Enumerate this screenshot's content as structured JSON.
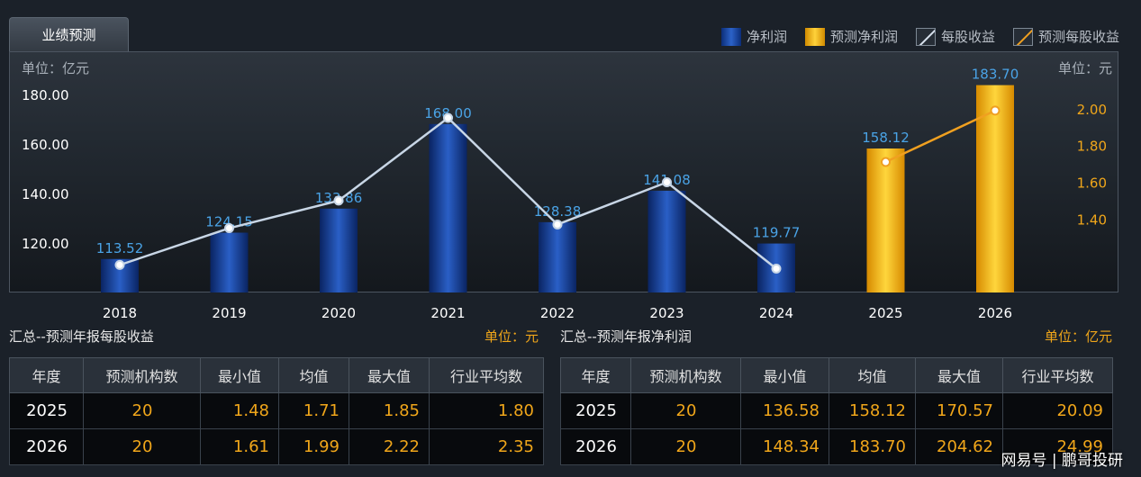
{
  "tab": {
    "label": "业绩预测"
  },
  "legend": [
    {
      "label": "净利润",
      "swatch": "blue"
    },
    {
      "label": "预测净利润",
      "swatch": "gold"
    },
    {
      "label": "每股收益",
      "swatch": "line white"
    },
    {
      "label": "预测每股收益",
      "swatch": "line orange"
    }
  ],
  "units": {
    "left": "单位：亿元",
    "right": "单位：元"
  },
  "chart_data": {
    "type": "bar",
    "categories": [
      "2018",
      "2019",
      "2020",
      "2021",
      "2022",
      "2023",
      "2024",
      "2025",
      "2026"
    ],
    "series": [
      {
        "name": "净利润",
        "values": [
          113.52,
          124.15,
          133.86,
          168.0,
          128.38,
          141.08,
          119.77,
          null,
          null
        ],
        "color": "#1f4fb0",
        "axis": "left"
      },
      {
        "name": "预测净利润",
        "values": [
          null,
          null,
          null,
          null,
          null,
          null,
          null,
          158.12,
          183.7
        ],
        "color": "#f5b400",
        "axis": "left"
      },
      {
        "name": "每股收益",
        "values": [
          1.15,
          1.35,
          1.5,
          1.95,
          1.37,
          1.6,
          1.13,
          null,
          null
        ],
        "color": "#c8d6e6",
        "axis": "right"
      },
      {
        "name": "预测每股收益",
        "values": [
          null,
          null,
          null,
          null,
          null,
          null,
          null,
          1.71,
          1.99
        ],
        "color": "#f0a020",
        "axis": "right"
      }
    ],
    "bar_labels": [
      "113.52",
      "124.15",
      "133.86",
      "168.00",
      "128.38",
      "141.08",
      "119.77",
      "158.12",
      "183.70"
    ],
    "y_left": {
      "ticks": [
        "120.00",
        "140.00",
        "160.00",
        "180.00"
      ],
      "range": [
        100,
        189
      ]
    },
    "y_right": {
      "ticks": [
        "1.40",
        "1.60",
        "1.80",
        "2.00"
      ],
      "range": [
        1.0,
        2.2
      ]
    },
    "grid": false
  },
  "eps_table": {
    "title": "汇总--预测年报每股收益",
    "unit": "单位：元",
    "headers": [
      "年度",
      "预测机构数",
      "最小值",
      "均值",
      "最大值",
      "行业平均数"
    ],
    "rows": [
      [
        "2025",
        "20",
        "1.48",
        "1.71",
        "1.85",
        "1.80"
      ],
      [
        "2026",
        "20",
        "1.61",
        "1.99",
        "2.22",
        "2.35"
      ]
    ]
  },
  "profit_table": {
    "title": "汇总--预测年报净利润",
    "unit": "单位：亿元",
    "headers": [
      "年度",
      "预测机构数",
      "最小值",
      "均值",
      "最大值",
      "行业平均数"
    ],
    "rows": [
      [
        "2025",
        "20",
        "136.58",
        "158.12",
        "170.57",
        "20.09"
      ],
      [
        "2026",
        "20",
        "148.34",
        "183.70",
        "204.62",
        "24.99"
      ]
    ]
  },
  "watermark": "网易号 | 鹏哥投研"
}
